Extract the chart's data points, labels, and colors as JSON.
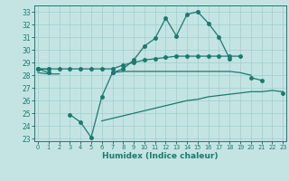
{
  "xlabel": "Humidex (Indice chaleur)",
  "x_all": [
    0,
    1,
    2,
    3,
    4,
    5,
    6,
    7,
    8,
    9,
    10,
    11,
    12,
    13,
    14,
    15,
    16,
    17,
    18,
    19,
    20,
    21,
    22,
    23
  ],
  "line_main": [
    28.5,
    28.2,
    null,
    null,
    null,
    null,
    null,
    28.2,
    28.5,
    29.2,
    30.3,
    30.9,
    32.5,
    31.1,
    32.8,
    33.0,
    32.1,
    31.0,
    29.3,
    null,
    27.8,
    27.6,
    null,
    26.6
  ],
  "line_upper": [
    28.5,
    28.5,
    28.5,
    28.5,
    28.5,
    28.5,
    28.5,
    28.5,
    28.8,
    29.0,
    29.2,
    29.3,
    29.4,
    29.5,
    29.5,
    29.5,
    29.5,
    29.5,
    29.5,
    29.5,
    null,
    null,
    null,
    null
  ],
  "line_mid": [
    28.2,
    28.1,
    28.1,
    null,
    null,
    null,
    null,
    28.2,
    28.3,
    28.3,
    28.3,
    28.3,
    28.3,
    28.3,
    28.3,
    28.3,
    28.3,
    28.3,
    28.3,
    28.2,
    28.0,
    null,
    null,
    null
  ],
  "line_dip": [
    28.5,
    28.5,
    null,
    24.9,
    24.3,
    23.1,
    26.3,
    28.2,
    null,
    null,
    null,
    null,
    null,
    null,
    null,
    null,
    null,
    null,
    null,
    null,
    null,
    null,
    null,
    null
  ],
  "line_lower": [
    null,
    null,
    null,
    null,
    null,
    null,
    24.4,
    24.6,
    24.8,
    25.0,
    25.2,
    25.4,
    25.6,
    25.8,
    26.0,
    26.1,
    26.3,
    26.4,
    26.5,
    26.6,
    26.7,
    26.7,
    26.8,
    26.7
  ],
  "color": "#1a7a6e",
  "bg_color": "#c4e4e4",
  "grid_color": "#9ecece",
  "xlim": [
    -0.3,
    23.3
  ],
  "ylim": [
    22.8,
    33.5
  ],
  "yticks": [
    23,
    24,
    25,
    26,
    27,
    28,
    29,
    30,
    31,
    32,
    33
  ],
  "xticks": [
    0,
    1,
    2,
    3,
    4,
    5,
    6,
    7,
    8,
    9,
    10,
    11,
    12,
    13,
    14,
    15,
    16,
    17,
    18,
    19,
    20,
    21,
    22,
    23
  ]
}
